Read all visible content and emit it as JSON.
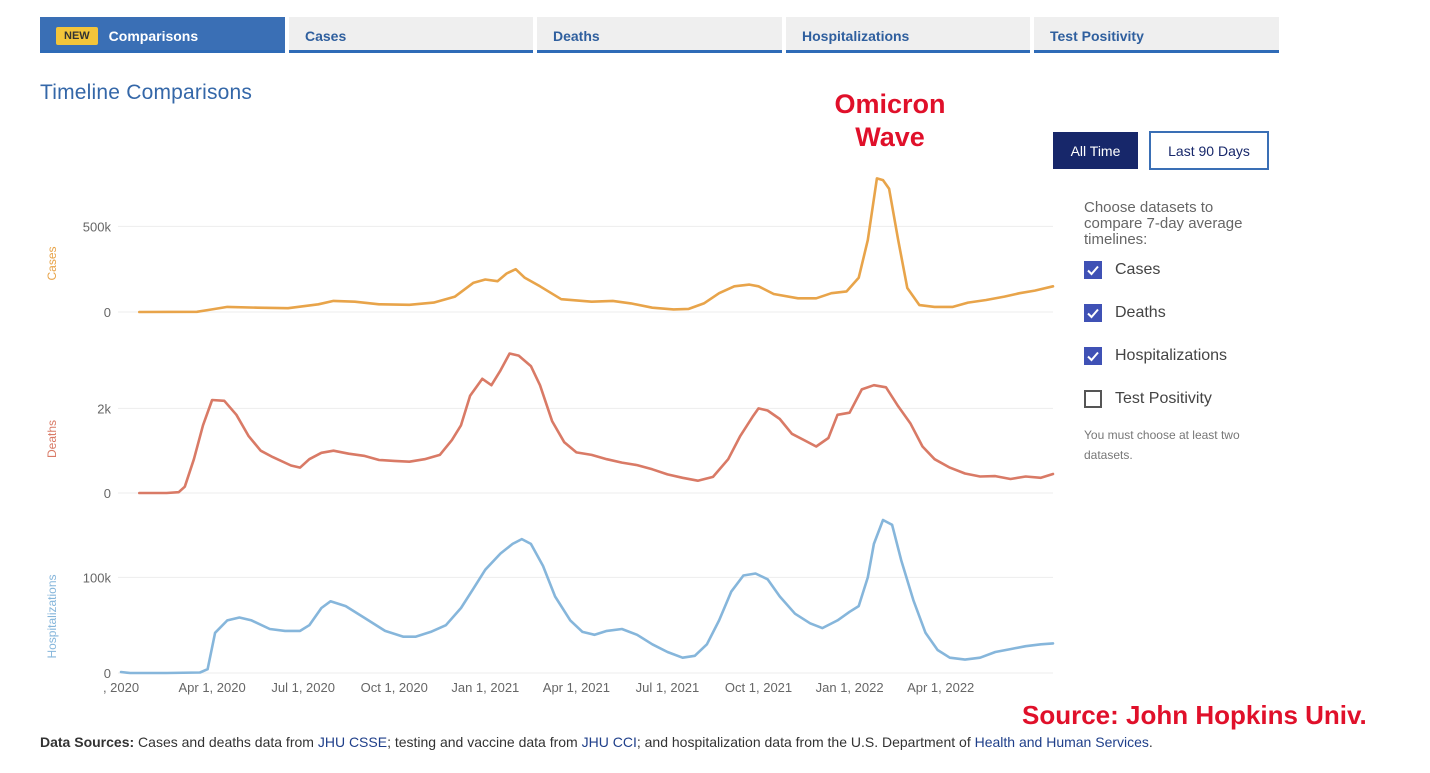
{
  "tabs": {
    "badge": "NEW",
    "items": [
      "Comparisons",
      "Cases",
      "Deaths",
      "Hospitalizations",
      "Test Positivity"
    ]
  },
  "title": "Timeline Comparisons",
  "annotation": {
    "line1": "Omicron",
    "line2": "Wave"
  },
  "range_buttons": {
    "all_time": "All Time",
    "last_90": "Last 90 Days"
  },
  "panel": {
    "intro": "Choose datasets to compare 7-day average timelines:",
    "options": [
      {
        "label": "Cases",
        "checked": true
      },
      {
        "label": "Deaths",
        "checked": true
      },
      {
        "label": "Hospitalizations",
        "checked": true
      },
      {
        "label": "Test Positivity",
        "checked": false
      }
    ],
    "note": "You must choose at least two datasets."
  },
  "source_note": "Source: John Hopkins Univ.",
  "footer": {
    "label": "Data Sources:",
    "t1": " Cases and deaths data from ",
    "l1": "JHU CSSE",
    "t2": "; testing and vaccine data from ",
    "l2": "JHU CCI",
    "t3": "; and hospitalization data from the U.S. Department of ",
    "l3": "Health and Human Services",
    "t4": "."
  },
  "chart_data": {
    "type": "line",
    "x_ticks": [
      {
        "label": ", 2020",
        "month": 0
      },
      {
        "label": "Apr 1, 2020",
        "month": 3
      },
      {
        "label": "Jul 1, 2020",
        "month": 6
      },
      {
        "label": "Oct 1, 2020",
        "month": 9
      },
      {
        "label": "Jan 1, 2021",
        "month": 12
      },
      {
        "label": "Apr 1, 2021",
        "month": 15
      },
      {
        "label": "Jul 1, 2021",
        "month": 18
      },
      {
        "label": "Oct 1, 2021",
        "month": 21
      },
      {
        "label": "Jan 1, 2022",
        "month": 24
      },
      {
        "label": "Apr 1, 2022",
        "month": 27
      }
    ],
    "x_range_months": [
      -0.1,
      30.7
    ],
    "series": [
      {
        "name": "Cases",
        "ylabel": "Cases",
        "color": "#e8a44a",
        "ylim": [
          0,
          800000
        ],
        "yticks": [
          0,
          500000
        ],
        "ytick_labels": [
          "0",
          "500k"
        ],
        "points": [
          [
            0.6,
            100
          ],
          [
            2.5,
            1000
          ],
          [
            3.0,
            15000
          ],
          [
            3.5,
            30000
          ],
          [
            4.5,
            25000
          ],
          [
            5.5,
            22000
          ],
          [
            6.5,
            45000
          ],
          [
            7.0,
            65000
          ],
          [
            7.7,
            60000
          ],
          [
            8.5,
            45000
          ],
          [
            9.5,
            42000
          ],
          [
            10.3,
            55000
          ],
          [
            11.0,
            90000
          ],
          [
            11.6,
            170000
          ],
          [
            12.0,
            190000
          ],
          [
            12.4,
            180000
          ],
          [
            12.7,
            225000
          ],
          [
            13.0,
            250000
          ],
          [
            13.3,
            200000
          ],
          [
            13.8,
            150000
          ],
          [
            14.5,
            75000
          ],
          [
            15.5,
            60000
          ],
          [
            16.2,
            65000
          ],
          [
            16.8,
            50000
          ],
          [
            17.5,
            25000
          ],
          [
            18.2,
            15000
          ],
          [
            18.7,
            18000
          ],
          [
            19.2,
            50000
          ],
          [
            19.7,
            110000
          ],
          [
            20.2,
            150000
          ],
          [
            20.7,
            160000
          ],
          [
            21.0,
            150000
          ],
          [
            21.5,
            105000
          ],
          [
            22.3,
            80000
          ],
          [
            22.9,
            80000
          ],
          [
            23.4,
            110000
          ],
          [
            23.9,
            120000
          ],
          [
            24.3,
            200000
          ],
          [
            24.6,
            420000
          ],
          [
            24.9,
            780000
          ],
          [
            25.1,
            770000
          ],
          [
            25.3,
            720000
          ],
          [
            25.6,
            420000
          ],
          [
            25.9,
            140000
          ],
          [
            26.3,
            40000
          ],
          [
            26.8,
            30000
          ],
          [
            27.4,
            30000
          ],
          [
            27.9,
            55000
          ],
          [
            28.5,
            70000
          ],
          [
            29.1,
            90000
          ],
          [
            29.6,
            110000
          ],
          [
            30.1,
            125000
          ],
          [
            30.7,
            150000
          ]
        ]
      },
      {
        "name": "Deaths",
        "ylabel": "Deaths",
        "color": "#d97a66",
        "ylim": [
          0,
          3500
        ],
        "yticks": [
          0,
          2000
        ],
        "ytick_labels": [
          "0",
          "2k"
        ],
        "points": [
          [
            0.6,
            0
          ],
          [
            1.5,
            0
          ],
          [
            1.9,
            20
          ],
          [
            2.1,
            150
          ],
          [
            2.4,
            800
          ],
          [
            2.7,
            1600
          ],
          [
            3.0,
            2200
          ],
          [
            3.4,
            2180
          ],
          [
            3.8,
            1850
          ],
          [
            4.2,
            1350
          ],
          [
            4.6,
            1000
          ],
          [
            5.0,
            850
          ],
          [
            5.6,
            650
          ],
          [
            5.9,
            600
          ],
          [
            6.2,
            800
          ],
          [
            6.6,
            950
          ],
          [
            7.0,
            1000
          ],
          [
            7.5,
            930
          ],
          [
            8.0,
            880
          ],
          [
            8.5,
            780
          ],
          [
            9.0,
            760
          ],
          [
            9.5,
            740
          ],
          [
            10.0,
            800
          ],
          [
            10.5,
            900
          ],
          [
            10.9,
            1250
          ],
          [
            11.2,
            1600
          ],
          [
            11.5,
            2300
          ],
          [
            11.9,
            2700
          ],
          [
            12.2,
            2550
          ],
          [
            12.5,
            2900
          ],
          [
            12.8,
            3300
          ],
          [
            13.1,
            3250
          ],
          [
            13.5,
            3000
          ],
          [
            13.8,
            2550
          ],
          [
            14.2,
            1700
          ],
          [
            14.6,
            1200
          ],
          [
            15.0,
            960
          ],
          [
            15.5,
            900
          ],
          [
            16.0,
            800
          ],
          [
            16.5,
            720
          ],
          [
            17.0,
            660
          ],
          [
            17.5,
            560
          ],
          [
            18.0,
            440
          ],
          [
            18.5,
            360
          ],
          [
            19.0,
            290
          ],
          [
            19.5,
            380
          ],
          [
            20.0,
            800
          ],
          [
            20.4,
            1350
          ],
          [
            20.8,
            1800
          ],
          [
            21.0,
            2000
          ],
          [
            21.3,
            1950
          ],
          [
            21.7,
            1750
          ],
          [
            22.1,
            1400
          ],
          [
            22.5,
            1250
          ],
          [
            22.9,
            1100
          ],
          [
            23.3,
            1300
          ],
          [
            23.6,
            1850
          ],
          [
            24.0,
            1900
          ],
          [
            24.4,
            2450
          ],
          [
            24.8,
            2550
          ],
          [
            25.2,
            2500
          ],
          [
            25.6,
            2050
          ],
          [
            26.0,
            1650
          ],
          [
            26.4,
            1100
          ],
          [
            26.8,
            800
          ],
          [
            27.3,
            600
          ],
          [
            27.8,
            460
          ],
          [
            28.3,
            390
          ],
          [
            28.8,
            400
          ],
          [
            29.3,
            330
          ],
          [
            29.8,
            390
          ],
          [
            30.3,
            360
          ],
          [
            30.7,
            450
          ]
        ]
      },
      {
        "name": "Hospitalizations",
        "ylabel": "Hospitalizations",
        "color": "#86b6db",
        "ylim": [
          0,
          160000
        ],
        "yticks": [
          0,
          100000
        ],
        "ytick_labels": [
          "0",
          "100k"
        ],
        "points": [
          [
            0.0,
            1000
          ],
          [
            0.3,
            0
          ],
          [
            1.5,
            0
          ],
          [
            2.6,
            500
          ],
          [
            2.85,
            4000
          ],
          [
            3.1,
            42000
          ],
          [
            3.5,
            55000
          ],
          [
            3.9,
            58000
          ],
          [
            4.3,
            55000
          ],
          [
            4.9,
            46000
          ],
          [
            5.4,
            44000
          ],
          [
            5.9,
            44000
          ],
          [
            6.2,
            50000
          ],
          [
            6.6,
            68000
          ],
          [
            6.9,
            75000
          ],
          [
            7.4,
            70000
          ],
          [
            8.0,
            58000
          ],
          [
            8.7,
            44000
          ],
          [
            9.3,
            38000
          ],
          [
            9.7,
            38000
          ],
          [
            10.2,
            43000
          ],
          [
            10.7,
            50000
          ],
          [
            11.2,
            68000
          ],
          [
            11.6,
            88000
          ],
          [
            12.0,
            108000
          ],
          [
            12.5,
            125000
          ],
          [
            12.9,
            135000
          ],
          [
            13.2,
            140000
          ],
          [
            13.5,
            135000
          ],
          [
            13.9,
            112000
          ],
          [
            14.3,
            80000
          ],
          [
            14.8,
            55000
          ],
          [
            15.2,
            43000
          ],
          [
            15.6,
            40000
          ],
          [
            16.0,
            44000
          ],
          [
            16.5,
            46000
          ],
          [
            17.0,
            40000
          ],
          [
            17.5,
            30000
          ],
          [
            18.0,
            22000
          ],
          [
            18.5,
            16000
          ],
          [
            18.9,
            18000
          ],
          [
            19.3,
            30000
          ],
          [
            19.7,
            55000
          ],
          [
            20.1,
            85000
          ],
          [
            20.5,
            102000
          ],
          [
            20.9,
            104000
          ],
          [
            21.3,
            98000
          ],
          [
            21.7,
            80000
          ],
          [
            22.2,
            62000
          ],
          [
            22.7,
            52000
          ],
          [
            23.1,
            47000
          ],
          [
            23.6,
            55000
          ],
          [
            24.0,
            64000
          ],
          [
            24.3,
            70000
          ],
          [
            24.6,
            100000
          ],
          [
            24.8,
            135000
          ],
          [
            25.1,
            160000
          ],
          [
            25.4,
            155000
          ],
          [
            25.7,
            118000
          ],
          [
            26.1,
            76000
          ],
          [
            26.5,
            42000
          ],
          [
            26.9,
            24000
          ],
          [
            27.3,
            16000
          ],
          [
            27.8,
            14000
          ],
          [
            28.3,
            16000
          ],
          [
            28.8,
            22000
          ],
          [
            29.3,
            25000
          ],
          [
            29.8,
            28000
          ],
          [
            30.3,
            30000
          ],
          [
            30.7,
            31000
          ]
        ]
      }
    ]
  }
}
